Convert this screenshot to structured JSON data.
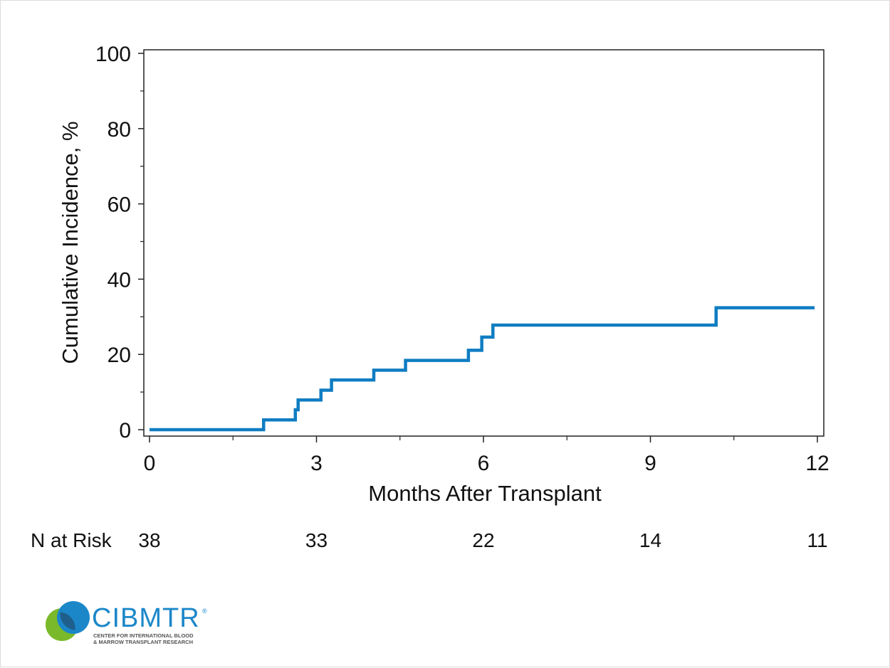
{
  "chart_data": {
    "type": "line",
    "step": true,
    "xlabel": "Months After Transplant",
    "ylabel": "Cumulative Incidence, %",
    "xlim": [
      0,
      12
    ],
    "ylim": [
      0,
      100
    ],
    "x_ticks": [
      0,
      3,
      6,
      9,
      12
    ],
    "x_minor_ticks": [
      1.5,
      4.5,
      7.5,
      10.5
    ],
    "y_ticks": [
      0,
      20,
      40,
      60,
      80,
      100
    ],
    "y_minor_ticks": [
      10,
      30,
      50,
      70,
      90
    ],
    "grid": false,
    "series": [
      {
        "color": "#0f7dc2",
        "x": [
          0,
          2.05,
          2.62,
          2.67,
          3.08,
          3.27,
          4.03,
          4.6,
          5.73,
          5.97,
          6.17,
          10.18,
          11.95
        ],
        "y": [
          0,
          2.6,
          5.3,
          7.9,
          10.5,
          13.2,
          15.8,
          18.4,
          21.1,
          24.6,
          27.8,
          32.4,
          32.4
        ]
      }
    ],
    "risk_table": {
      "label": "N at Risk",
      "x": [
        0,
        3,
        6,
        9,
        12
      ],
      "values": [
        "38",
        "33",
        "22",
        "14",
        "11"
      ]
    }
  },
  "logo": {
    "name": "CIBMTR",
    "registered": "®",
    "subtitle_line1": "CENTER FOR INTERNATIONAL BLOOD",
    "subtitle_line2": "& MARROW TRANSPLANT RESEARCH",
    "colors": {
      "green": "#7ab929",
      "blue": "#1b87c9",
      "overlap": "#1f5f8b"
    }
  }
}
